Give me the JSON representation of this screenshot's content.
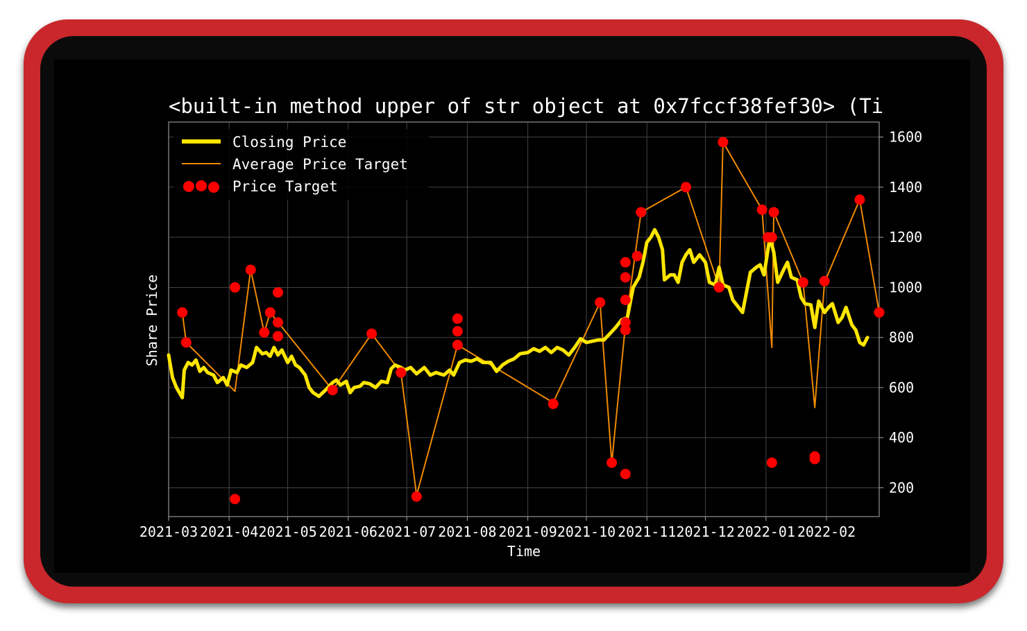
{
  "colors": {
    "frame": "#c9272b",
    "background": "#000000",
    "closing": "#ffe600",
    "average": "#f08a00",
    "target": "#ff0000",
    "grid": "#444444",
    "text": "#ffffff"
  },
  "chart_data": {
    "type": "line",
    "title": "<built-in method upper of str object at 0x7fccf38fef30> (Ti",
    "xlabel": "Time",
    "ylabel": "Share Price",
    "x_ticks": [
      "2021-03",
      "2021-04",
      "2021-05",
      "2021-06",
      "2021-07",
      "2021-08",
      "2021-09",
      "2021-10",
      "2021-11",
      "2021-12",
      "2022-01",
      "2022-02"
    ],
    "y_ticks": [
      200,
      400,
      600,
      800,
      1000,
      1200,
      1400,
      1600
    ],
    "ylim": [
      85,
      1660
    ],
    "xlim": [
      "2021-03-01",
      "2022-02-28"
    ],
    "y_axis_side": "right",
    "grid": true,
    "legend_position": "top-left",
    "legend": [
      "Closing Price",
      "Average Price Target",
      "Price Target"
    ],
    "series": [
      {
        "name": "Closing Price",
        "type": "line",
        "points": [
          [
            "2021-03-01",
            730
          ],
          [
            "2021-03-03",
            640
          ],
          [
            "2021-03-05",
            600
          ],
          [
            "2021-03-08",
            560
          ],
          [
            "2021-03-09",
            670
          ],
          [
            "2021-03-11",
            700
          ],
          [
            "2021-03-13",
            690
          ],
          [
            "2021-03-15",
            710
          ],
          [
            "2021-03-17",
            665
          ],
          [
            "2021-03-19",
            680
          ],
          [
            "2021-03-21",
            660
          ],
          [
            "2021-03-24",
            650
          ],
          [
            "2021-03-26",
            620
          ],
          [
            "2021-03-29",
            640
          ],
          [
            "2021-03-31",
            610
          ],
          [
            "2021-04-02",
            670
          ],
          [
            "2021-04-05",
            660
          ],
          [
            "2021-04-07",
            690
          ],
          [
            "2021-04-10",
            680
          ],
          [
            "2021-04-13",
            700
          ],
          [
            "2021-04-15",
            760
          ],
          [
            "2021-04-18",
            735
          ],
          [
            "2021-04-20",
            740
          ],
          [
            "2021-04-22",
            725
          ],
          [
            "2021-04-24",
            760
          ],
          [
            "2021-04-26",
            730
          ],
          [
            "2021-04-28",
            750
          ],
          [
            "2021-05-01",
            700
          ],
          [
            "2021-05-03",
            725
          ],
          [
            "2021-05-05",
            690
          ],
          [
            "2021-05-07",
            680
          ],
          [
            "2021-05-10",
            650
          ],
          [
            "2021-05-12",
            600
          ],
          [
            "2021-05-14",
            580
          ],
          [
            "2021-05-17",
            565
          ],
          [
            "2021-05-19",
            580
          ],
          [
            "2021-05-21",
            595
          ],
          [
            "2021-05-24",
            620
          ],
          [
            "2021-05-26",
            630
          ],
          [
            "2021-05-28",
            610
          ],
          [
            "2021-05-31",
            625
          ],
          [
            "2021-06-02",
            580
          ],
          [
            "2021-06-04",
            600
          ],
          [
            "2021-06-07",
            605
          ],
          [
            "2021-06-09",
            620
          ],
          [
            "2021-06-12",
            615
          ],
          [
            "2021-06-15",
            600
          ],
          [
            "2021-06-18",
            625
          ],
          [
            "2021-06-21",
            620
          ],
          [
            "2021-06-23",
            675
          ],
          [
            "2021-06-25",
            690
          ],
          [
            "2021-06-28",
            680
          ],
          [
            "2021-06-30",
            670
          ],
          [
            "2021-07-03",
            680
          ],
          [
            "2021-07-06",
            655
          ],
          [
            "2021-07-10",
            680
          ],
          [
            "2021-07-13",
            650
          ],
          [
            "2021-07-16",
            660
          ],
          [
            "2021-07-20",
            650
          ],
          [
            "2021-07-23",
            670
          ],
          [
            "2021-07-25",
            650
          ],
          [
            "2021-07-28",
            700
          ],
          [
            "2021-07-31",
            710
          ],
          [
            "2021-08-03",
            705
          ],
          [
            "2021-08-06",
            715
          ],
          [
            "2021-08-09",
            700
          ],
          [
            "2021-08-13",
            700
          ],
          [
            "2021-08-16",
            665
          ],
          [
            "2021-08-19",
            690
          ],
          [
            "2021-08-22",
            705
          ],
          [
            "2021-08-25",
            715
          ],
          [
            "2021-08-28",
            735
          ],
          [
            "2021-09-01",
            740
          ],
          [
            "2021-09-04",
            755
          ],
          [
            "2021-09-07",
            745
          ],
          [
            "2021-09-10",
            760
          ],
          [
            "2021-09-13",
            740
          ],
          [
            "2021-09-16",
            760
          ],
          [
            "2021-09-19",
            750
          ],
          [
            "2021-09-22",
            730
          ],
          [
            "2021-09-25",
            760
          ],
          [
            "2021-09-28",
            795
          ],
          [
            "2021-10-01",
            780
          ],
          [
            "2021-10-04",
            785
          ],
          [
            "2021-10-07",
            790
          ],
          [
            "2021-10-10",
            790
          ],
          [
            "2021-10-13",
            815
          ],
          [
            "2021-10-16",
            840
          ],
          [
            "2021-10-19",
            870
          ],
          [
            "2021-10-22",
            880
          ],
          [
            "2021-10-25",
            1000
          ],
          [
            "2021-10-28",
            1040
          ],
          [
            "2021-10-30",
            1100
          ],
          [
            "2021-11-01",
            1180
          ],
          [
            "2021-11-03",
            1200
          ],
          [
            "2021-11-05",
            1230
          ],
          [
            "2021-11-07",
            1200
          ],
          [
            "2021-11-09",
            1150
          ],
          [
            "2021-11-10",
            1030
          ],
          [
            "2021-11-13",
            1050
          ],
          [
            "2021-11-15",
            1050
          ],
          [
            "2021-11-17",
            1020
          ],
          [
            "2021-11-19",
            1100
          ],
          [
            "2021-11-21",
            1130
          ],
          [
            "2021-11-23",
            1150
          ],
          [
            "2021-11-25",
            1100
          ],
          [
            "2021-11-28",
            1130
          ],
          [
            "2021-12-01",
            1100
          ],
          [
            "2021-12-03",
            1020
          ],
          [
            "2021-12-06",
            1010
          ],
          [
            "2021-12-08",
            1080
          ],
          [
            "2021-12-10",
            1010
          ],
          [
            "2021-12-13",
            1000
          ],
          [
            "2021-12-15",
            950
          ],
          [
            "2021-12-17",
            930
          ],
          [
            "2021-12-20",
            900
          ],
          [
            "2021-12-22",
            980
          ],
          [
            "2021-12-24",
            1060
          ],
          [
            "2021-12-27",
            1080
          ],
          [
            "2021-12-29",
            1090
          ],
          [
            "2021-12-31",
            1050
          ],
          [
            "2022-01-03",
            1200
          ],
          [
            "2022-01-05",
            1140
          ],
          [
            "2022-01-07",
            1020
          ],
          [
            "2022-01-10",
            1070
          ],
          [
            "2022-01-12",
            1100
          ],
          [
            "2022-01-14",
            1040
          ],
          [
            "2022-01-17",
            1030
          ],
          [
            "2022-01-19",
            960
          ],
          [
            "2022-01-21",
            935
          ],
          [
            "2022-01-24",
            930
          ],
          [
            "2022-01-26",
            840
          ],
          [
            "2022-01-28",
            945
          ],
          [
            "2022-01-31",
            900
          ],
          [
            "2022-02-02",
            920
          ],
          [
            "2022-02-04",
            935
          ],
          [
            "2022-02-07",
            860
          ],
          [
            "2022-02-09",
            880
          ],
          [
            "2022-02-11",
            920
          ],
          [
            "2022-02-14",
            850
          ],
          [
            "2022-02-16",
            830
          ],
          [
            "2022-02-18",
            780
          ],
          [
            "2022-02-20",
            770
          ],
          [
            "2022-02-22",
            800
          ]
        ]
      },
      {
        "name": "Average Price Target",
        "type": "line",
        "points": [
          [
            "2021-03-08",
            900
          ],
          [
            "2021-03-10",
            780
          ],
          [
            "2021-04-04",
            585
          ],
          [
            "2021-04-12",
            1070
          ],
          [
            "2021-04-19",
            820
          ],
          [
            "2021-04-22",
            900
          ],
          [
            "2021-05-24",
            590
          ],
          [
            "2021-06-13",
            815
          ],
          [
            "2021-06-28",
            660
          ],
          [
            "2021-07-06",
            170
          ],
          [
            "2021-07-27",
            770
          ],
          [
            "2021-09-14",
            540
          ],
          [
            "2021-10-08",
            940
          ],
          [
            "2021-10-14",
            300
          ],
          [
            "2021-10-21",
            850
          ],
          [
            "2021-10-29",
            1300
          ],
          [
            "2021-11-21",
            1400
          ],
          [
            "2021-12-08",
            1000
          ],
          [
            "2021-12-10",
            1580
          ],
          [
            "2021-12-30",
            1310
          ],
          [
            "2022-01-04",
            760
          ],
          [
            "2022-01-05",
            1300
          ],
          [
            "2022-01-20",
            1020
          ],
          [
            "2022-01-26",
            520
          ],
          [
            "2022-01-31",
            1020
          ],
          [
            "2022-02-18",
            1350
          ],
          [
            "2022-02-28",
            900
          ]
        ]
      },
      {
        "name": "Price Target",
        "type": "scatter",
        "points": [
          [
            "2021-03-08",
            900
          ],
          [
            "2021-03-10",
            780
          ],
          [
            "2021-04-04",
            1000
          ],
          [
            "2021-04-04",
            155
          ],
          [
            "2021-04-12",
            1070
          ],
          [
            "2021-04-19",
            820
          ],
          [
            "2021-04-22",
            900
          ],
          [
            "2021-04-26",
            860
          ],
          [
            "2021-04-26",
            805
          ],
          [
            "2021-04-26",
            980
          ],
          [
            "2021-05-24",
            590
          ],
          [
            "2021-06-13",
            815
          ],
          [
            "2021-06-28",
            660
          ],
          [
            "2021-07-06",
            165
          ],
          [
            "2021-07-27",
            875
          ],
          [
            "2021-07-27",
            825
          ],
          [
            "2021-07-27",
            770
          ],
          [
            "2021-09-14",
            535
          ],
          [
            "2021-10-08",
            940
          ],
          [
            "2021-10-14",
            300
          ],
          [
            "2021-10-21",
            1100
          ],
          [
            "2021-10-21",
            1040
          ],
          [
            "2021-10-21",
            950
          ],
          [
            "2021-10-21",
            860
          ],
          [
            "2021-10-21",
            830
          ],
          [
            "2021-10-21",
            255
          ],
          [
            "2021-10-27",
            1125
          ],
          [
            "2021-10-29",
            1300
          ],
          [
            "2021-11-21",
            1400
          ],
          [
            "2021-12-08",
            1000
          ],
          [
            "2021-12-10",
            1580
          ],
          [
            "2021-12-30",
            1310
          ],
          [
            "2022-01-02",
            1200
          ],
          [
            "2022-01-04",
            1200
          ],
          [
            "2022-01-04",
            300
          ],
          [
            "2022-01-05",
            1300
          ],
          [
            "2022-01-20",
            1020
          ],
          [
            "2022-01-26",
            325
          ],
          [
            "2022-01-26",
            315
          ],
          [
            "2022-01-31",
            1025
          ],
          [
            "2022-02-18",
            1350
          ],
          [
            "2022-02-28",
            900
          ]
        ]
      }
    ]
  }
}
